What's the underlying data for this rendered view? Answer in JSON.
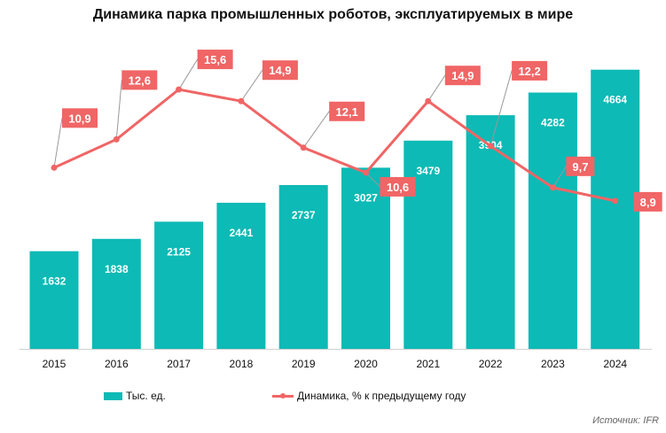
{
  "chart_data": {
    "type": "bar+line",
    "title": "Динамика парка промышленных роботов, эксплуатируемых в мире",
    "categories": [
      "2015",
      "2016",
      "2017",
      "2018",
      "2019",
      "2020",
      "2021",
      "2022",
      "2023",
      "2024"
    ],
    "series": [
      {
        "name": "Тыс. ед.",
        "type": "bar",
        "axis": "primary",
        "color": "#0dbab5",
        "values": [
          1632,
          1838,
          2125,
          2441,
          2737,
          3027,
          3479,
          3904,
          4282,
          4664
        ],
        "labels": [
          "1632",
          "1838",
          "2125",
          "2441",
          "2737",
          "3027",
          "3479",
          "3904",
          "4282",
          "4664"
        ]
      },
      {
        "name": "Динамика, % к предыдущему году",
        "type": "line",
        "axis": "secondary",
        "color": "#f06565",
        "values": [
          10.9,
          12.6,
          15.6,
          14.9,
          12.1,
          10.6,
          14.9,
          12.2,
          9.7,
          8.9
        ],
        "labels": [
          "10,9",
          "12,6",
          "15,6",
          "14,9",
          "12,1",
          "10,6",
          "14,9",
          "12,2",
          "9,7",
          "8,9"
        ]
      }
    ],
    "ylim_primary": [
      0,
      5000
    ],
    "ylim_secondary": [
      0,
      18
    ],
    "grid": false,
    "legend": "bottom"
  },
  "source": "Источник: IFR"
}
